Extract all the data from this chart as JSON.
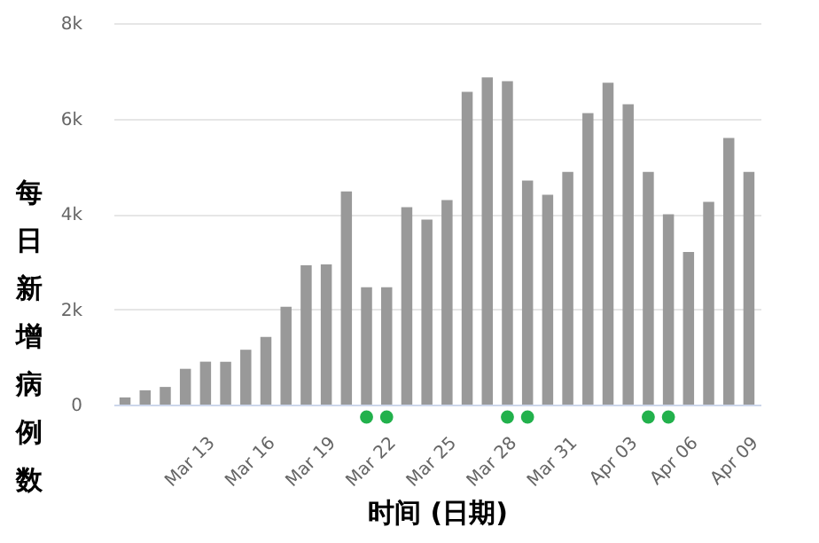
{
  "chart_data": {
    "type": "bar",
    "xlabel": "时间 (日期)",
    "ylabel": "每日新增病例数",
    "categories": [
      null,
      null,
      null,
      null,
      "Mar 13",
      null,
      null,
      "Mar 16",
      null,
      null,
      "Mar 19",
      null,
      null,
      "Mar 22",
      null,
      null,
      "Mar 25",
      null,
      null,
      "Mar 28",
      null,
      null,
      "Mar 31",
      null,
      null,
      "Apr 03",
      null,
      null,
      "Apr 06",
      null,
      null,
      "Apr 09"
    ],
    "series": [
      {
        "color": "#999999",
        "values": [
          150,
          300,
          370,
          750,
          900,
          900,
          1150,
          1420,
          2050,
          2920,
          2940,
          4470,
          2460,
          2460,
          4140,
          3880,
          4290,
          6560,
          6860,
          6780,
          4700,
          4400,
          4880,
          6110,
          6750,
          6300,
          4880,
          3990,
          3200,
          4250,
          5590,
          4880
        ]
      }
    ],
    "ylim": [
      0,
      8000
    ],
    "yticks": [
      0,
      {
        "value": 2000,
        "label": "2k"
      },
      {
        "value": 4000,
        "label": "4k"
      },
      {
        "value": 6000,
        "label": "6k"
      },
      {
        "value": 8000,
        "label": "8k"
      }
    ],
    "grid": "y"
  }
}
